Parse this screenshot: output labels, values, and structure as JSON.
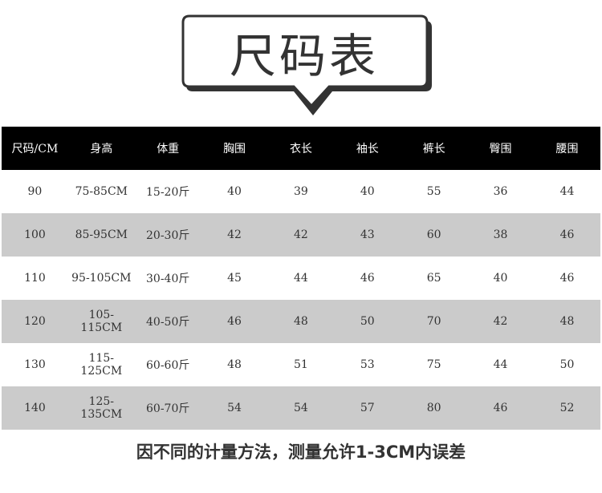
{
  "title": "尺码表",
  "table": {
    "headers": [
      "尺码/CM",
      "身高",
      "体重",
      "胸围",
      "衣长",
      "袖长",
      "裤长",
      "臀围",
      "腰围"
    ],
    "rows": [
      [
        "90",
        "75-85CM",
        "15-20斤",
        "40",
        "39",
        "40",
        "55",
        "36",
        "44"
      ],
      [
        "100",
        "85-95CM",
        "20-30斤",
        "42",
        "42",
        "43",
        "60",
        "38",
        "46"
      ],
      [
        "110",
        "95-105CM",
        "30-40斤",
        "45",
        "44",
        "46",
        "65",
        "40",
        "46"
      ],
      [
        "120",
        "105-115CM",
        "40-50斤",
        "46",
        "48",
        "50",
        "70",
        "42",
        "48"
      ],
      [
        "130",
        "115-125CM",
        "60-60斤",
        "48",
        "51",
        "53",
        "75",
        "44",
        "50"
      ],
      [
        "140",
        "125-135CM",
        "60-70斤",
        "54",
        "54",
        "57",
        "80",
        "46",
        "52"
      ]
    ]
  },
  "note": "因不同的计量方法，测量允许1-3CM内误差",
  "colors": {
    "header_bg": "#000000",
    "stripe": "#cbcbcb",
    "text": "#333333"
  }
}
